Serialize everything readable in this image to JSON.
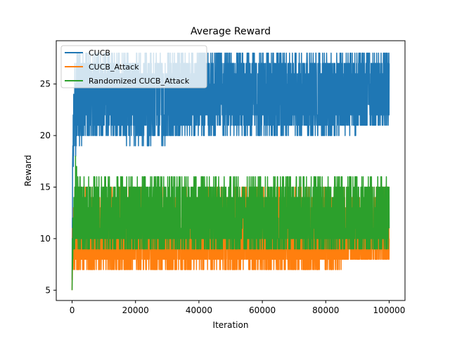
{
  "chart_data": {
    "type": "line",
    "title": "Average Reward",
    "xlabel": "Iteration",
    "ylabel": "Reward",
    "xlim": [
      -5000,
      105000
    ],
    "ylim": [
      4,
      29.2
    ],
    "xticks": [
      0,
      20000,
      40000,
      60000,
      80000,
      100000
    ],
    "xtick_labels": [
      "0",
      "20000",
      "40000",
      "60000",
      "80000",
      "100000"
    ],
    "yticks": [
      5,
      10,
      15,
      20,
      25
    ],
    "ytick_labels": [
      "5",
      "10",
      "15",
      "20",
      "25"
    ],
    "grid": false,
    "legend_position": "top-left",
    "series": [
      {
        "name": "CUCB",
        "color": "#1f77b4",
        "x": [
          0,
          200,
          600,
          1000,
          2000,
          5000,
          10000,
          20000,
          40000,
          60000,
          80000,
          100000
        ],
        "y": [
          5,
          18,
          22,
          24,
          25,
          25,
          25,
          25,
          25,
          25,
          25,
          25
        ],
        "band_low": [
          5,
          15,
          18,
          18,
          19,
          20,
          20,
          19,
          20,
          20,
          20,
          21
        ],
        "band_high": [
          8,
          20,
          26,
          28,
          28,
          28,
          28,
          28,
          28,
          28,
          28,
          28
        ]
      },
      {
        "name": "CUCB_Attack",
        "color": "#ff7f0e",
        "x": [
          0,
          200,
          600,
          1000,
          2000,
          5000,
          10000,
          20000,
          40000,
          60000,
          80000,
          100000
        ],
        "y": [
          5,
          9,
          10,
          10,
          10,
          10,
          10,
          10,
          10,
          10,
          10,
          10
        ],
        "band_low": [
          5,
          7,
          7,
          7,
          7,
          7,
          7,
          7,
          7,
          7,
          7,
          8
        ],
        "band_high": [
          8,
          12,
          15,
          15,
          15,
          15,
          15,
          15,
          15,
          15,
          15,
          15
        ]
      },
      {
        "name": "Randomized CUCB_Attack",
        "color": "#2ca02c",
        "x": [
          0,
          200,
          600,
          1000,
          2000,
          5000,
          10000,
          20000,
          40000,
          60000,
          80000,
          100000
        ],
        "y": [
          5,
          11,
          12,
          12,
          12,
          12,
          12,
          12,
          12,
          12,
          12,
          12
        ],
        "band_low": [
          5,
          8,
          9,
          9,
          9,
          9,
          9,
          9,
          9,
          9,
          9,
          9
        ],
        "band_high": [
          8,
          15,
          17,
          18,
          16,
          16,
          16,
          16,
          16,
          16,
          16,
          16
        ]
      }
    ]
  }
}
